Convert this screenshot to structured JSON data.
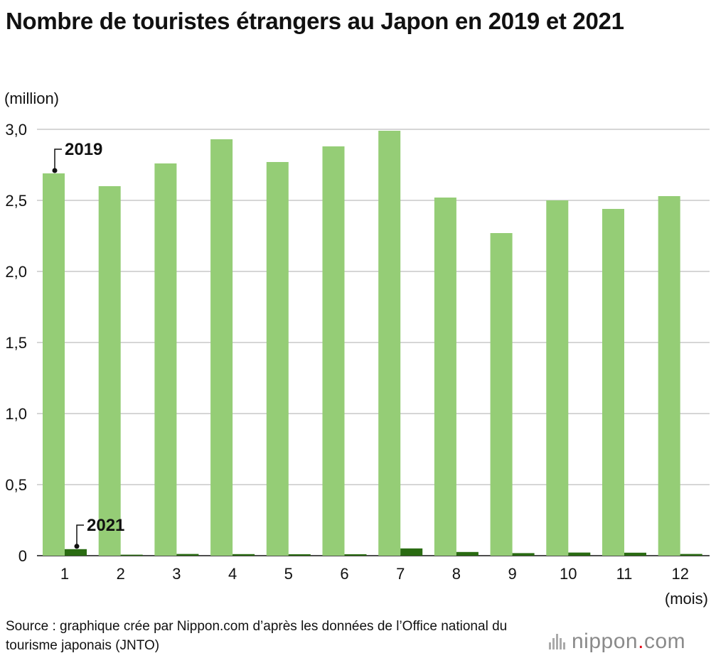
{
  "title": "Nombre de touristes étrangers au Japon en 2019 et 2021",
  "source": "Source : graphique crée par Nippon.com d’après les données de l’Office national du tourisme japonais (JNTO)",
  "logo": {
    "name": "nippon",
    "dot": ".",
    "tld": "com"
  },
  "colors": {
    "series_2019": "#95cd76",
    "series_2021": "#2a6b12",
    "grid": "#c8c8c8"
  },
  "chart_data": {
    "type": "bar",
    "title": "Nombre de touristes étrangers au Japon en 2019 et 2021",
    "ylabel": "(million)",
    "xlabel": "(mois)",
    "ylim": [
      0,
      3.0
    ],
    "yticks": [
      "0",
      "0,5",
      "1,0",
      "1,5",
      "2,0",
      "2,5",
      "3,0"
    ],
    "ytick_values": [
      0,
      0.5,
      1.0,
      1.5,
      2.0,
      2.5,
      3.0
    ],
    "grid": true,
    "categories": [
      "1",
      "2",
      "3",
      "4",
      "5",
      "6",
      "7",
      "8",
      "9",
      "10",
      "11",
      "12"
    ],
    "series": [
      {
        "name": "2019",
        "values": [
          2.69,
          2.6,
          2.76,
          2.93,
          2.77,
          2.88,
          2.99,
          2.52,
          2.27,
          2.5,
          2.44,
          2.53
        ]
      },
      {
        "name": "2021",
        "values": [
          0.046,
          0.007,
          0.012,
          0.011,
          0.01,
          0.01,
          0.051,
          0.026,
          0.018,
          0.022,
          0.021,
          0.012
        ]
      }
    ]
  }
}
